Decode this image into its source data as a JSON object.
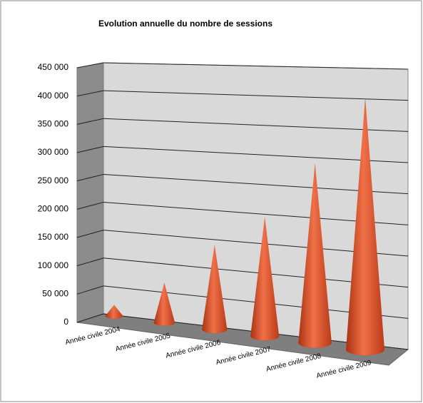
{
  "chart_data": {
    "type": "cone3d",
    "title": "Evolution annuelle du nombre de sessions",
    "categories": [
      "Année civile 2004",
      "Année civile 2005",
      "Année civile 2006",
      "Année civile 2007",
      "Année civile 2008",
      "Année civile 2009"
    ],
    "values": [
      20000,
      70000,
      145000,
      200000,
      295000,
      405000
    ],
    "color": "#e0562a",
    "ylim": [
      0,
      450000
    ],
    "yticks": [
      0,
      {
        "value": 50000,
        "label": "50 000"
      },
      {
        "value": 100000,
        "label": "100 000"
      },
      {
        "value": 150000,
        "label": "150 000"
      },
      {
        "value": 200000,
        "label": "200 000"
      },
      {
        "value": 250000,
        "label": "250 000"
      },
      {
        "value": 300000,
        "label": "300 000"
      },
      {
        "value": 350000,
        "label": "350 000"
      },
      {
        "value": 400000,
        "label": "400 000"
      },
      {
        "value": 450000,
        "label": "450 000"
      }
    ],
    "grid": true
  }
}
